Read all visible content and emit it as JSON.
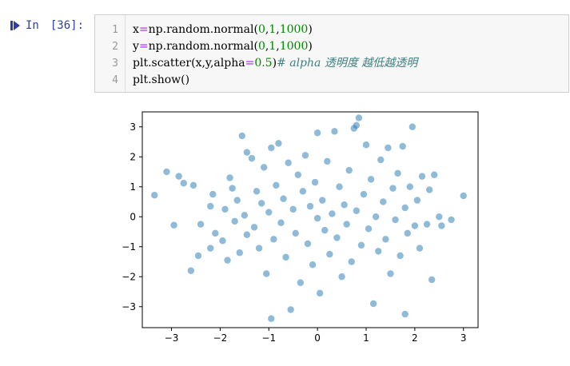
{
  "prompt": {
    "label": "In",
    "number": "[36]:"
  },
  "code_lines": [
    {
      "line_number": "1",
      "parts": [
        {
          "text": "x",
          "cls": ""
        },
        {
          "text": "=",
          "cls": "op"
        },
        {
          "text": "np.random.normal(",
          "cls": ""
        },
        {
          "text": "0",
          "cls": "num"
        },
        {
          "text": ",",
          "cls": ""
        },
        {
          "text": "1",
          "cls": "num"
        },
        {
          "text": ",",
          "cls": ""
        },
        {
          "text": "1000",
          "cls": "num"
        },
        {
          "text": ")",
          "cls": ""
        }
      ]
    },
    {
      "line_number": "2",
      "parts": [
        {
          "text": "y",
          "cls": ""
        },
        {
          "text": "=",
          "cls": "op"
        },
        {
          "text": "np.random.normal(",
          "cls": ""
        },
        {
          "text": "0",
          "cls": "num"
        },
        {
          "text": ",",
          "cls": ""
        },
        {
          "text": "1",
          "cls": "num"
        },
        {
          "text": ",",
          "cls": ""
        },
        {
          "text": "1000",
          "cls": "num"
        },
        {
          "text": ")",
          "cls": ""
        }
      ]
    },
    {
      "line_number": "3",
      "parts": [
        {
          "text": "plt.scatter(x,y,alpha",
          "cls": ""
        },
        {
          "text": "=",
          "cls": "op"
        },
        {
          "text": "0.5",
          "cls": "num"
        },
        {
          "text": ")",
          "cls": ""
        },
        {
          "text": "# alpha 透明度 越低越透明",
          "cls": "cmt"
        }
      ]
    },
    {
      "line_number": "4",
      "parts": [
        {
          "text": "plt.show()",
          "cls": ""
        }
      ]
    }
  ],
  "colors": {
    "marker": "#1f77b4",
    "prompt": "#303F9F"
  },
  "chart_data": {
    "type": "scatter",
    "title": "",
    "xlabel": "",
    "ylabel": "",
    "xlim": [
      -3.6,
      3.3
    ],
    "ylim": [
      -3.7,
      3.5
    ],
    "xticks": [
      -3,
      -2,
      -1,
      0,
      1,
      2,
      3
    ],
    "yticks": [
      -3,
      -2,
      -1,
      0,
      1,
      2,
      3
    ],
    "xtick_labels": [
      "−3",
      "−2",
      "−1",
      "0",
      "1",
      "2",
      "3"
    ],
    "ytick_labels": [
      "−3",
      "−2",
      "−1",
      "0",
      "1",
      "2",
      "3"
    ],
    "point_count": 1000,
    "points": [
      [
        -3.35,
        0.72
      ],
      [
        -3.1,
        1.5
      ],
      [
        -2.95,
        -0.28
      ],
      [
        -2.85,
        1.35
      ],
      [
        -2.75,
        1.12
      ],
      [
        -2.55,
        1.05
      ],
      [
        -2.6,
        -1.8
      ],
      [
        -2.45,
        -1.3
      ],
      [
        -2.4,
        -0.25
      ],
      [
        -2.2,
        0.35
      ],
      [
        -2.15,
        0.75
      ],
      [
        -2.2,
        -1.05
      ],
      [
        -2.1,
        -0.55
      ],
      [
        -1.95,
        -0.8
      ],
      [
        -1.9,
        0.25
      ],
      [
        -1.8,
        1.3
      ],
      [
        -1.85,
        -1.45
      ],
      [
        -1.75,
        0.95
      ],
      [
        -1.7,
        -0.15
      ],
      [
        -1.65,
        0.55
      ],
      [
        -1.6,
        -1.2
      ],
      [
        -1.55,
        2.7
      ],
      [
        -1.5,
        0.05
      ],
      [
        -1.45,
        -0.6
      ],
      [
        -1.45,
        2.15
      ],
      [
        -1.35,
        1.95
      ],
      [
        -1.3,
        -0.35
      ],
      [
        -1.25,
        0.85
      ],
      [
        -1.2,
        -1.05
      ],
      [
        -1.15,
        0.45
      ],
      [
        -1.1,
        1.65
      ],
      [
        -1.05,
        -1.9
      ],
      [
        -1.0,
        0.15
      ],
      [
        -0.95,
        2.3
      ],
      [
        -0.9,
        -0.75
      ],
      [
        -0.85,
        1.05
      ],
      [
        -0.8,
        2.45
      ],
      [
        -0.75,
        -0.2
      ],
      [
        -0.7,
        0.6
      ],
      [
        -0.65,
        -1.35
      ],
      [
        -0.6,
        1.8
      ],
      [
        -0.55,
        -3.1
      ],
      [
        -0.5,
        0.25
      ],
      [
        -0.45,
        -0.55
      ],
      [
        -0.4,
        1.4
      ],
      [
        -0.35,
        -2.2
      ],
      [
        -0.3,
        0.85
      ],
      [
        -0.25,
        2.05
      ],
      [
        -0.2,
        -0.9
      ],
      [
        -0.15,
        0.35
      ],
      [
        -0.1,
        -1.6
      ],
      [
        -0.05,
        1.15
      ],
      [
        0.0,
        2.8
      ],
      [
        0.0,
        -0.05
      ],
      [
        0.05,
        -2.55
      ],
      [
        0.1,
        0.55
      ],
      [
        0.15,
        -0.45
      ],
      [
        0.2,
        1.85
      ],
      [
        0.25,
        -1.25
      ],
      [
        0.3,
        0.1
      ],
      [
        0.35,
        2.85
      ],
      [
        0.4,
        -0.7
      ],
      [
        0.45,
        1.0
      ],
      [
        0.5,
        -2.0
      ],
      [
        0.55,
        0.4
      ],
      [
        0.6,
        -0.25
      ],
      [
        0.65,
        1.55
      ],
      [
        0.7,
        -1.5
      ],
      [
        0.75,
        2.95
      ],
      [
        0.8,
        0.2
      ],
      [
        0.85,
        3.3
      ],
      [
        0.9,
        -0.95
      ],
      [
        0.95,
        0.75
      ],
      [
        1.0,
        2.4
      ],
      [
        1.05,
        -0.4
      ],
      [
        1.1,
        1.25
      ],
      [
        1.15,
        -2.9
      ],
      [
        1.2,
        0.0
      ],
      [
        1.25,
        -1.15
      ],
      [
        1.3,
        1.9
      ],
      [
        1.35,
        0.5
      ],
      [
        1.4,
        -0.75
      ],
      [
        1.45,
        2.3
      ],
      [
        1.5,
        -1.9
      ],
      [
        1.55,
        0.95
      ],
      [
        1.6,
        -0.1
      ],
      [
        1.65,
        1.45
      ],
      [
        1.7,
        -1.3
      ],
      [
        1.75,
        2.35
      ],
      [
        1.8,
        0.3
      ],
      [
        1.85,
        -0.55
      ],
      [
        1.9,
        1.0
      ],
      [
        1.95,
        3.0
      ],
      [
        2.0,
        -0.3
      ],
      [
        2.05,
        0.55
      ],
      [
        2.1,
        -1.05
      ],
      [
        2.15,
        1.35
      ],
      [
        2.25,
        -0.25
      ],
      [
        2.3,
        0.9
      ],
      [
        2.35,
        -2.1
      ],
      [
        2.4,
        1.4
      ],
      [
        2.5,
        0.0
      ],
      [
        2.55,
        -0.3
      ],
      [
        2.75,
        -0.1
      ],
      [
        3.0,
        0.7
      ],
      [
        1.8,
        -3.25
      ],
      [
        -0.95,
        -3.4
      ],
      [
        0.8,
        3.05
      ]
    ]
  }
}
